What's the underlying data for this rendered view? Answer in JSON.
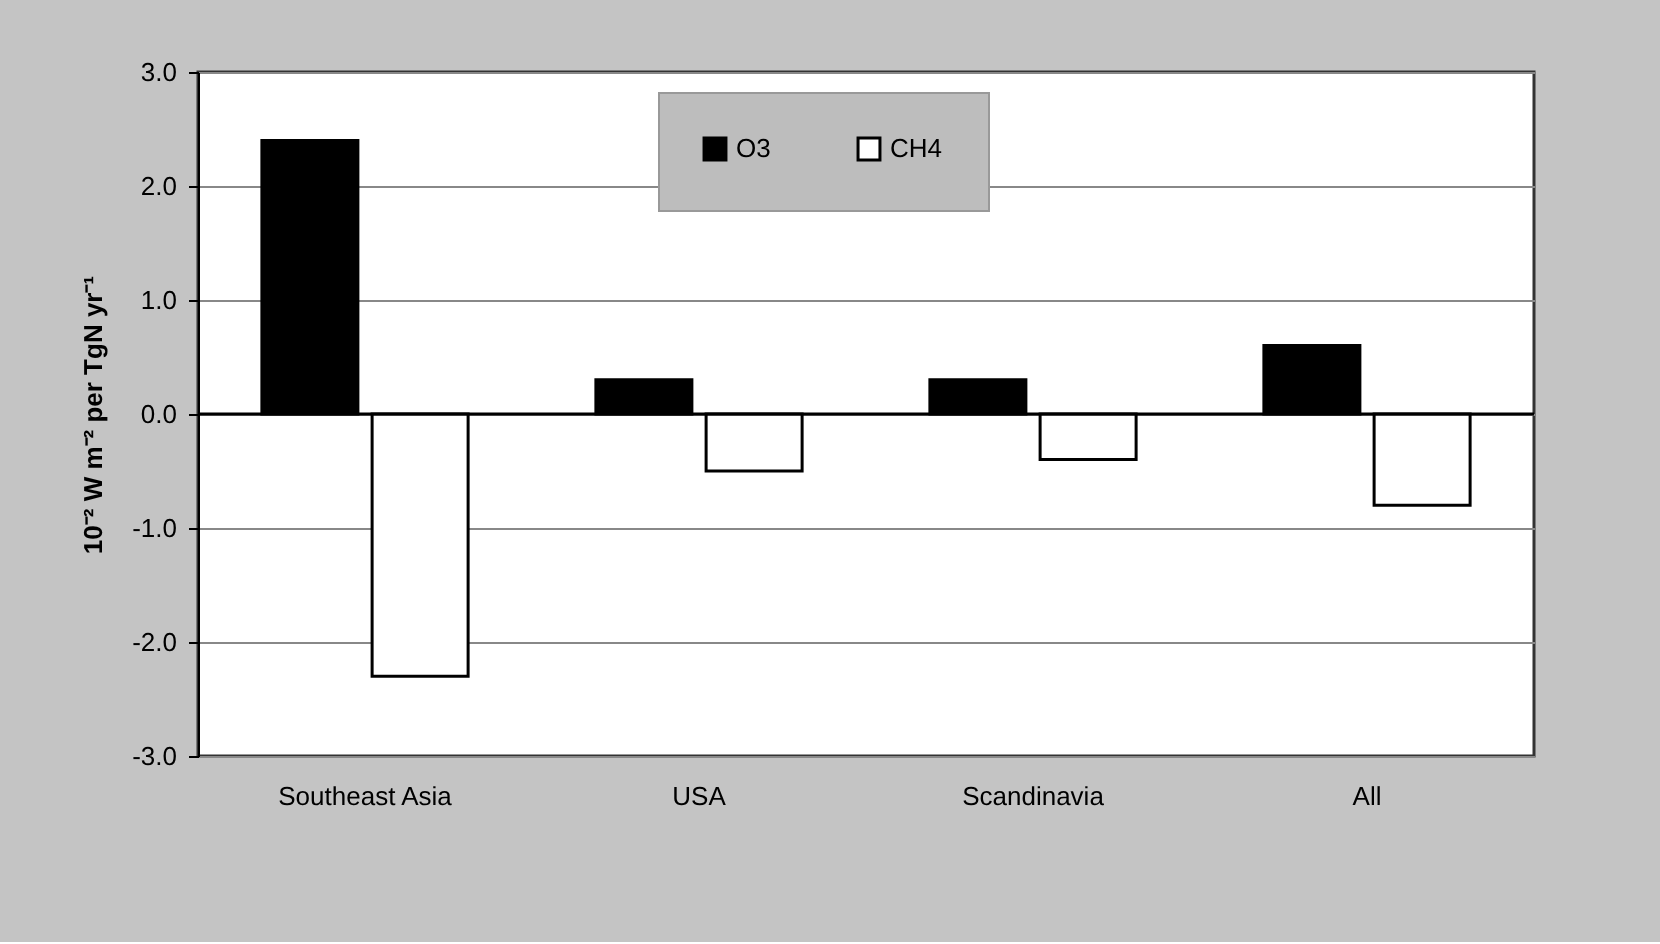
{
  "chart_data": {
    "type": "bar",
    "ylabel": "10⁻² W m⁻² per TgN yr⁻¹",
    "categories": [
      "Southeast Asia",
      "USA",
      "Scandinavia",
      "All"
    ],
    "series": [
      {
        "name": "O3",
        "color": "#000000",
        "values": [
          2.4,
          0.3,
          0.3,
          0.6
        ]
      },
      {
        "name": "CH4",
        "color": "#ffffff",
        "values": [
          -2.3,
          -0.5,
          -0.4,
          -0.8
        ]
      }
    ],
    "ylim": [
      -3.0,
      3.0
    ],
    "yticks": [
      {
        "value": -3,
        "label": "-3.0"
      },
      {
        "value": -2,
        "label": "-2.0"
      },
      {
        "value": -1,
        "label": "-1.0"
      },
      {
        "value": 0,
        "label": "0.0"
      },
      {
        "value": 1,
        "label": "1.0"
      },
      {
        "value": 2,
        "label": "2.0"
      },
      {
        "value": 3,
        "label": "3.0"
      }
    ],
    "grid": "y",
    "legend": "top"
  }
}
